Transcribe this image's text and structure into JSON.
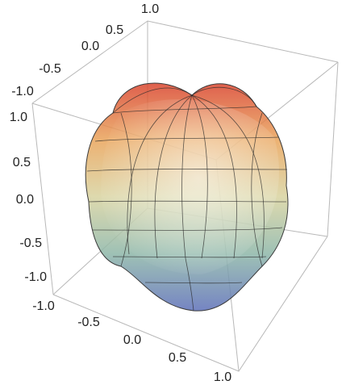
{
  "chart_data": {
    "type": "surface3d",
    "title": "",
    "xlabel": "",
    "ylabel": "",
    "zlabel": "",
    "xlim": [
      -1.0,
      1.0
    ],
    "ylim": [
      -1.0,
      1.0
    ],
    "zlim": [
      -1.0,
      1.0
    ],
    "x_ticks": [
      "-1.0",
      "-0.5",
      "0.0",
      "0.5",
      "1.0"
    ],
    "y_ticks": [
      "-1.0",
      "-0.5",
      "0.0",
      "0.5",
      "1.0"
    ],
    "z_ticks": [
      "-1.0",
      "-0.5",
      "0.0",
      "0.5",
      "1.0"
    ],
    "surface": "lobed spherical harmonic shape with mesh lines",
    "colors": {
      "top": "#d9442e",
      "upper": "#e9a45a",
      "middle": "#d8d3a0",
      "lower": "#8db6a8",
      "bottom": "#5d6fb8",
      "mesh": "#2a2a2a",
      "box": "#b8b8b8"
    }
  }
}
